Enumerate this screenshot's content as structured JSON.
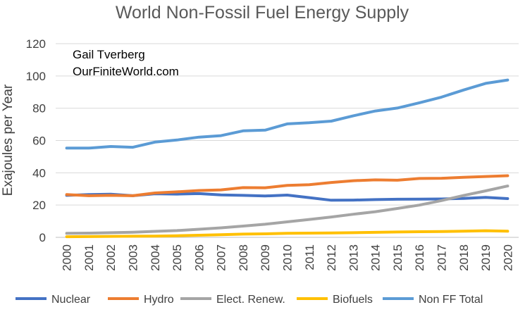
{
  "chart_data": {
    "type": "line",
    "title": "World Non-Fossil Fuel Energy Supply",
    "annotation": [
      "Gail Tverberg",
      "OurFiniteWorld.com"
    ],
    "xlabel": "",
    "ylabel": "Exajoules per Year",
    "ylim": [
      0,
      120
    ],
    "yticks": [
      0,
      20,
      40,
      60,
      80,
      100,
      120
    ],
    "grid": true,
    "legend_position": "bottom",
    "categories": [
      "2000",
      "2001",
      "2002",
      "2003",
      "2004",
      "2005",
      "2006",
      "2007",
      "2008",
      "2009",
      "2010",
      "2011",
      "2012",
      "2013",
      "2014",
      "2015",
      "2016",
      "2017",
      "2018",
      "2019",
      "2020"
    ],
    "series": [
      {
        "name": "Nuclear",
        "color": "#4472c4",
        "values": [
          26,
          26.5,
          26.7,
          25.8,
          27.0,
          26.8,
          27.1,
          26.3,
          26.0,
          25.6,
          26.2,
          24.6,
          23.0,
          23.1,
          23.4,
          23.6,
          23.7,
          23.8,
          24.1,
          24.8,
          24.0
        ]
      },
      {
        "name": "Hydro",
        "color": "#ed7d31",
        "values": [
          26.5,
          25.8,
          26.0,
          25.8,
          27.5,
          28.2,
          29.0,
          29.4,
          30.8,
          30.7,
          32.2,
          32.6,
          34.0,
          35.1,
          35.6,
          35.4,
          36.5,
          36.6,
          37.2,
          37.7,
          38.2
        ]
      },
      {
        "name": "Elect. Renew.",
        "color": "#a5a5a5",
        "values": [
          2.5,
          2.6,
          2.9,
          3.2,
          3.7,
          4.2,
          5.0,
          5.9,
          7.0,
          8.1,
          9.6,
          11.1,
          12.6,
          14.3,
          15.9,
          17.9,
          20.0,
          22.8,
          25.9,
          28.8,
          31.8
        ]
      },
      {
        "name": "Biofuels",
        "color": "#ffc000",
        "values": [
          0.4,
          0.5,
          0.6,
          0.7,
          0.8,
          1.0,
          1.3,
          1.6,
          2.0,
          2.2,
          2.5,
          2.6,
          2.7,
          2.9,
          3.1,
          3.3,
          3.5,
          3.6,
          3.8,
          4.1,
          3.8
        ]
      },
      {
        "name": "Non FF Total",
        "color": "#5b9bd5",
        "values": [
          55.3,
          55.3,
          56.3,
          55.8,
          59.0,
          60.3,
          62.1,
          63.0,
          66.0,
          66.4,
          70.3,
          71.0,
          72.0,
          75.3,
          78.3,
          80.1,
          83.4,
          86.9,
          91.3,
          95.4,
          97.5
        ]
      }
    ]
  }
}
